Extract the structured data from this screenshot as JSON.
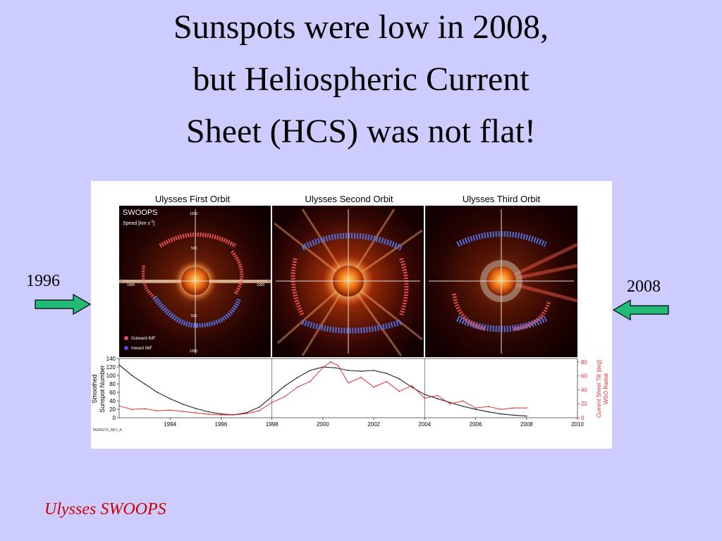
{
  "slide": {
    "title_lines": [
      "Sunspots were low in 2008,",
      "but Heliospheric Current",
      "Sheet (HCS) was not flat!"
    ],
    "left_label": "1996",
    "right_label": "2008",
    "caption": "Ulysses SWOOPS",
    "colors": {
      "background": "#ccccff",
      "arrow": "#22bb77",
      "caption": "#cc0000"
    }
  },
  "chart_data": [
    {
      "type": "image",
      "panel_titles": [
        "Ulysses First Orbit",
        "Ulysses Second Orbit",
        "Ulysses Third Orbit"
      ],
      "instrument_label": "SWOOPS",
      "speed_label": "Speed [km s",
      "speed_label_sup": "-1",
      "speed_label_end": "]",
      "radial_ticks": [
        "1000",
        "500",
        "500",
        "1000"
      ],
      "horizontal_ticks": [
        "1000",
        "1000"
      ],
      "legend": [
        "Outward IMF",
        "Inward IMF"
      ],
      "legend_colors": [
        "#e05050",
        "#5050e0"
      ]
    },
    {
      "type": "line",
      "x_range": [
        1992,
        2010
      ],
      "x_ticks": [
        "1994",
        "1996",
        "1998",
        "2000",
        "2002",
        "2004",
        "2006",
        "2008",
        "2010"
      ],
      "y_left_label_lines": [
        "Smoothed",
        "Sunspot Number"
      ],
      "y_left_range": [
        0,
        140
      ],
      "y_left_ticks": [
        "0",
        "20",
        "40",
        "60",
        "80",
        "100",
        "120",
        "140"
      ],
      "y_right_label_lines": [
        "Current Sheet Tilt [deg]",
        "WSO Radial"
      ],
      "y_right_range": [
        0,
        85
      ],
      "y_right_ticks": [
        "0",
        "20",
        "40",
        "60",
        "80"
      ],
      "orbit_boundaries": [
        1998,
        2004
      ],
      "footnote": "TA006073_REV_A",
      "series": [
        {
          "x": [
            1992.0,
            1992.5,
            1993.0,
            1993.5,
            1994.0,
            1994.5,
            1995.0,
            1995.5,
            1996.0,
            1996.5,
            1997.0,
            1997.5,
            1998.0,
            1998.5,
            1999.0,
            1999.5,
            2000.0,
            2000.5,
            2001.0,
            2001.5,
            2002.0,
            2002.5,
            2003.0,
            2003.5,
            2004.0,
            2004.5,
            2005.0,
            2005.5,
            2006.0,
            2006.5,
            2007.0,
            2007.5,
            2008.0
          ],
          "values": [
            125,
            100,
            80,
            60,
            45,
            32,
            22,
            14,
            9,
            7,
            12,
            25,
            50,
            75,
            95,
            112,
            120,
            118,
            112,
            110,
            112,
            105,
            92,
            72,
            55,
            45,
            36,
            27,
            20,
            14,
            9,
            6,
            4
          ]
        },
        {
          "x": [
            1992.0,
            1992.5,
            1993.0,
            1993.5,
            1994.0,
            1994.5,
            1995.0,
            1995.5,
            1996.0,
            1996.5,
            1997.0,
            1997.5,
            1998.0,
            1998.5,
            1999.0,
            1999.5,
            2000.0,
            2000.3,
            2000.6,
            2001.0,
            2001.5,
            2002.0,
            2002.5,
            2003.0,
            2003.5,
            2004.0,
            2004.5,
            2005.0,
            2005.5,
            2006.0,
            2006.5,
            2007.0,
            2007.5,
            2008.0
          ],
          "values": [
            17,
            12,
            13,
            10,
            11,
            9,
            7,
            5,
            4,
            4,
            6,
            10,
            22,
            30,
            44,
            52,
            72,
            80,
            75,
            50,
            58,
            44,
            52,
            38,
            46,
            28,
            32,
            20,
            24,
            14,
            16,
            12,
            14,
            14
          ]
        }
      ]
    }
  ]
}
